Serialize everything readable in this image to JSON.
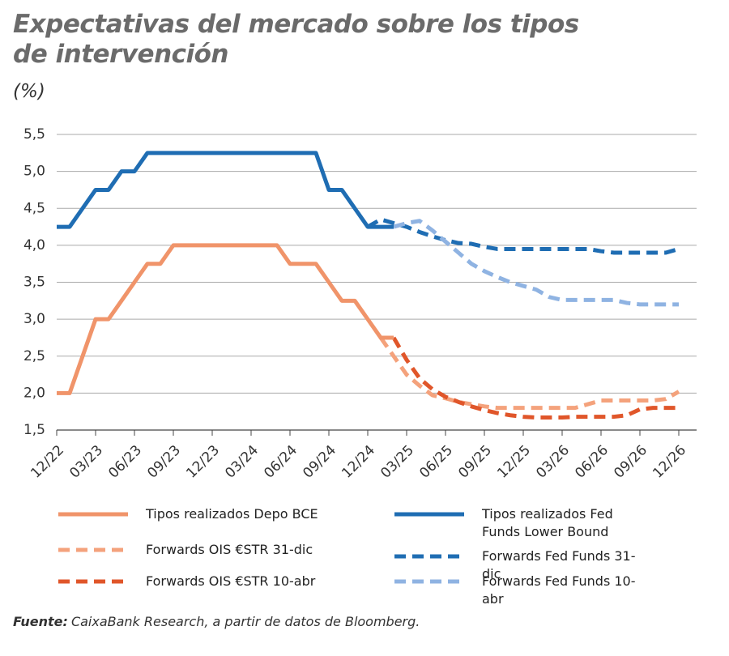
{
  "chart_data": {
    "type": "line",
    "title": "Expectativas del mercado sobre los tipos de intervención",
    "y_label": "(%)",
    "categories": [
      "12/22",
      null,
      null,
      "03/23",
      null,
      null,
      "06/23",
      null,
      null,
      "09/23",
      null,
      null,
      "12/23",
      null,
      null,
      "03/24",
      null,
      null,
      "06/24",
      null,
      null,
      "09/24",
      null,
      null,
      "12/24",
      null,
      null,
      "03/25",
      null,
      null,
      "06/25",
      null,
      null,
      "09/25",
      null,
      null,
      "12/25",
      null,
      null,
      "03/26",
      null,
      null,
      "06/26",
      null,
      null,
      "09/26",
      null,
      null,
      "12/26"
    ],
    "ylim": [
      1.5,
      5.5
    ],
    "yticks": [
      {
        "value": 1.5,
        "label": "1,5"
      },
      {
        "value": 2,
        "label": "2,0"
      },
      {
        "value": 2.5,
        "label": "2,5"
      },
      {
        "value": 3,
        "label": "3,0"
      },
      {
        "value": 3.5,
        "label": "3,5"
      },
      {
        "value": 4,
        "label": "4,0"
      },
      {
        "value": 4.5,
        "label": "4,5"
      },
      {
        "value": 5,
        "label": "5,0"
      },
      {
        "value": 5.5,
        "label": "5,5"
      }
    ],
    "grid": true,
    "series": [
      {
        "name": "Tipos realizados Depo BCE",
        "color": "#f0946a",
        "dashed": false,
        "values": [
          2.0,
          2.0,
          2.5,
          3.0,
          3.0,
          3.25,
          3.5,
          3.75,
          3.75,
          4.0,
          4.0,
          4.0,
          4.0,
          4.0,
          4.0,
          4.0,
          4.0,
          4.0,
          3.75,
          3.75,
          3.75,
          3.5,
          3.25,
          3.25,
          3.0,
          2.75,
          2.75,
          null,
          null,
          null,
          null,
          null,
          null,
          null,
          null,
          null,
          null,
          null,
          null,
          null,
          null,
          null,
          null,
          null,
          null,
          null,
          null,
          null,
          null
        ]
      },
      {
        "name": "Forwards OIS €STR 31-dic",
        "color": "#f4a27c",
        "dashed": true,
        "values": [
          null,
          null,
          null,
          null,
          null,
          null,
          null,
          null,
          null,
          null,
          null,
          null,
          null,
          null,
          null,
          null,
          null,
          null,
          null,
          null,
          null,
          null,
          null,
          null,
          null,
          2.75,
          2.5,
          2.25,
          2.1,
          1.97,
          1.93,
          1.88,
          1.85,
          1.82,
          1.8,
          1.8,
          1.8,
          1.8,
          1.8,
          1.8,
          1.8,
          1.85,
          1.9,
          1.9,
          1.9,
          1.9,
          1.9,
          1.92,
          2.02
        ]
      },
      {
        "name": "Forwards OIS €STR 10-abr",
        "color": "#e0562a",
        "dashed": true,
        "values": [
          null,
          null,
          null,
          null,
          null,
          null,
          null,
          null,
          null,
          null,
          null,
          null,
          null,
          null,
          null,
          null,
          null,
          null,
          null,
          null,
          null,
          null,
          null,
          null,
          null,
          null,
          2.75,
          2.45,
          2.2,
          2.05,
          1.95,
          1.88,
          1.82,
          1.77,
          1.73,
          1.7,
          1.68,
          1.67,
          1.67,
          1.67,
          1.68,
          1.68,
          1.68,
          1.68,
          1.7,
          1.78,
          1.8,
          1.8,
          1.8
        ]
      },
      {
        "name": "Tipos realizados Fed Funds Lower Bound",
        "color": "#1f6db3",
        "dashed": false,
        "values": [
          4.25,
          4.25,
          4.5,
          4.75,
          4.75,
          5.0,
          5.0,
          5.25,
          5.25,
          5.25,
          5.25,
          5.25,
          5.25,
          5.25,
          5.25,
          5.25,
          5.25,
          5.25,
          5.25,
          5.25,
          5.25,
          4.75,
          4.75,
          4.5,
          4.25,
          4.25,
          4.25,
          null,
          null,
          null,
          null,
          null,
          null,
          null,
          null,
          null,
          null,
          null,
          null,
          null,
          null,
          null,
          null,
          null,
          null,
          null,
          null,
          null,
          null
        ]
      },
      {
        "name": "Forwards Fed Funds 31-dic",
        "color": "#1f6db3",
        "dashed": true,
        "values": [
          null,
          null,
          null,
          null,
          null,
          null,
          null,
          null,
          null,
          null,
          null,
          null,
          null,
          null,
          null,
          null,
          null,
          null,
          null,
          null,
          null,
          null,
          null,
          null,
          4.25,
          4.35,
          4.3,
          4.25,
          4.18,
          4.12,
          4.07,
          4.03,
          4.02,
          3.98,
          3.95,
          3.95,
          3.95,
          3.95,
          3.95,
          3.95,
          3.95,
          3.95,
          3.92,
          3.9,
          3.9,
          3.9,
          3.9,
          3.9,
          3.95
        ]
      },
      {
        "name": "Forwards Fed Funds 10-abr",
        "color": "#8fb3e2",
        "dashed": true,
        "values": [
          null,
          null,
          null,
          null,
          null,
          null,
          null,
          null,
          null,
          null,
          null,
          null,
          null,
          null,
          null,
          null,
          null,
          null,
          null,
          null,
          null,
          null,
          null,
          null,
          null,
          null,
          4.25,
          4.3,
          4.33,
          4.2,
          4.05,
          3.9,
          3.75,
          3.65,
          3.57,
          3.5,
          3.45,
          3.4,
          3.3,
          3.26,
          3.26,
          3.26,
          3.26,
          3.26,
          3.22,
          3.2,
          3.2,
          3.2,
          3.2
        ]
      }
    ],
    "source": {
      "label": "Fuente:",
      "text": "CaixaBank Research, a partir de datos de Bloomberg."
    }
  }
}
